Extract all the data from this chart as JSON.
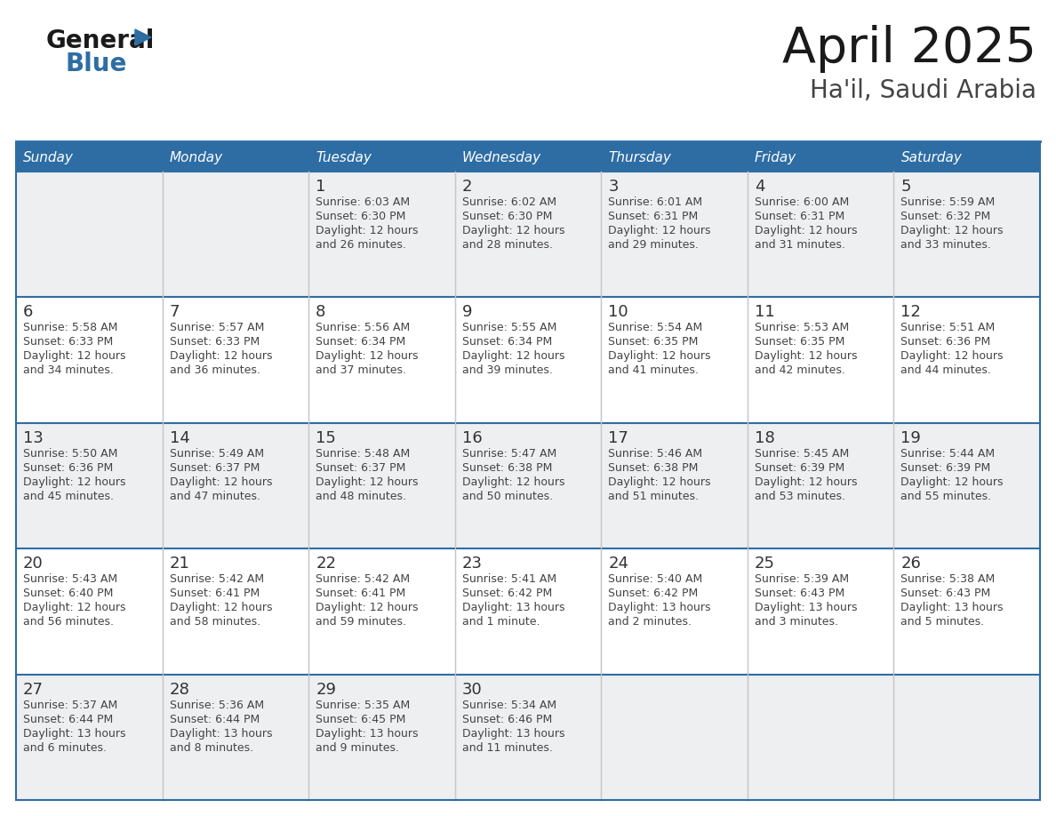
{
  "title": "April 2025",
  "subtitle": "Ha'il, Saudi Arabia",
  "days_of_week": [
    "Sunday",
    "Monday",
    "Tuesday",
    "Wednesday",
    "Thursday",
    "Friday",
    "Saturday"
  ],
  "header_bg": "#2E6DA4",
  "header_text": "#FFFFFF",
  "row_bg_odd": "#EEEFF1",
  "row_bg_even": "#FFFFFF",
  "cell_border_color": "#2E6DA4",
  "inner_border_color": "#AAAAAA",
  "day_number_color": "#333333",
  "text_color": "#444444",
  "title_color": "#1a1a1a",
  "subtitle_color": "#444444",
  "logo_general_color": "#1a1a1a",
  "logo_blue_color": "#2E6DA4",
  "logo_triangle_color": "#2E6DA4",
  "calendar_data": [
    [
      {
        "day": null,
        "lines": []
      },
      {
        "day": null,
        "lines": []
      },
      {
        "day": "1",
        "lines": [
          "Sunrise: 6:03 AM",
          "Sunset: 6:30 PM",
          "Daylight: 12 hours",
          "and 26 minutes."
        ]
      },
      {
        "day": "2",
        "lines": [
          "Sunrise: 6:02 AM",
          "Sunset: 6:30 PM",
          "Daylight: 12 hours",
          "and 28 minutes."
        ]
      },
      {
        "day": "3",
        "lines": [
          "Sunrise: 6:01 AM",
          "Sunset: 6:31 PM",
          "Daylight: 12 hours",
          "and 29 minutes."
        ]
      },
      {
        "day": "4",
        "lines": [
          "Sunrise: 6:00 AM",
          "Sunset: 6:31 PM",
          "Daylight: 12 hours",
          "and 31 minutes."
        ]
      },
      {
        "day": "5",
        "lines": [
          "Sunrise: 5:59 AM",
          "Sunset: 6:32 PM",
          "Daylight: 12 hours",
          "and 33 minutes."
        ]
      }
    ],
    [
      {
        "day": "6",
        "lines": [
          "Sunrise: 5:58 AM",
          "Sunset: 6:33 PM",
          "Daylight: 12 hours",
          "and 34 minutes."
        ]
      },
      {
        "day": "7",
        "lines": [
          "Sunrise: 5:57 AM",
          "Sunset: 6:33 PM",
          "Daylight: 12 hours",
          "and 36 minutes."
        ]
      },
      {
        "day": "8",
        "lines": [
          "Sunrise: 5:56 AM",
          "Sunset: 6:34 PM",
          "Daylight: 12 hours",
          "and 37 minutes."
        ]
      },
      {
        "day": "9",
        "lines": [
          "Sunrise: 5:55 AM",
          "Sunset: 6:34 PM",
          "Daylight: 12 hours",
          "and 39 minutes."
        ]
      },
      {
        "day": "10",
        "lines": [
          "Sunrise: 5:54 AM",
          "Sunset: 6:35 PM",
          "Daylight: 12 hours",
          "and 41 minutes."
        ]
      },
      {
        "day": "11",
        "lines": [
          "Sunrise: 5:53 AM",
          "Sunset: 6:35 PM",
          "Daylight: 12 hours",
          "and 42 minutes."
        ]
      },
      {
        "day": "12",
        "lines": [
          "Sunrise: 5:51 AM",
          "Sunset: 6:36 PM",
          "Daylight: 12 hours",
          "and 44 minutes."
        ]
      }
    ],
    [
      {
        "day": "13",
        "lines": [
          "Sunrise: 5:50 AM",
          "Sunset: 6:36 PM",
          "Daylight: 12 hours",
          "and 45 minutes."
        ]
      },
      {
        "day": "14",
        "lines": [
          "Sunrise: 5:49 AM",
          "Sunset: 6:37 PM",
          "Daylight: 12 hours",
          "and 47 minutes."
        ]
      },
      {
        "day": "15",
        "lines": [
          "Sunrise: 5:48 AM",
          "Sunset: 6:37 PM",
          "Daylight: 12 hours",
          "and 48 minutes."
        ]
      },
      {
        "day": "16",
        "lines": [
          "Sunrise: 5:47 AM",
          "Sunset: 6:38 PM",
          "Daylight: 12 hours",
          "and 50 minutes."
        ]
      },
      {
        "day": "17",
        "lines": [
          "Sunrise: 5:46 AM",
          "Sunset: 6:38 PM",
          "Daylight: 12 hours",
          "and 51 minutes."
        ]
      },
      {
        "day": "18",
        "lines": [
          "Sunrise: 5:45 AM",
          "Sunset: 6:39 PM",
          "Daylight: 12 hours",
          "and 53 minutes."
        ]
      },
      {
        "day": "19",
        "lines": [
          "Sunrise: 5:44 AM",
          "Sunset: 6:39 PM",
          "Daylight: 12 hours",
          "and 55 minutes."
        ]
      }
    ],
    [
      {
        "day": "20",
        "lines": [
          "Sunrise: 5:43 AM",
          "Sunset: 6:40 PM",
          "Daylight: 12 hours",
          "and 56 minutes."
        ]
      },
      {
        "day": "21",
        "lines": [
          "Sunrise: 5:42 AM",
          "Sunset: 6:41 PM",
          "Daylight: 12 hours",
          "and 58 minutes."
        ]
      },
      {
        "day": "22",
        "lines": [
          "Sunrise: 5:42 AM",
          "Sunset: 6:41 PM",
          "Daylight: 12 hours",
          "and 59 minutes."
        ]
      },
      {
        "day": "23",
        "lines": [
          "Sunrise: 5:41 AM",
          "Sunset: 6:42 PM",
          "Daylight: 13 hours",
          "and 1 minute."
        ]
      },
      {
        "day": "24",
        "lines": [
          "Sunrise: 5:40 AM",
          "Sunset: 6:42 PM",
          "Daylight: 13 hours",
          "and 2 minutes."
        ]
      },
      {
        "day": "25",
        "lines": [
          "Sunrise: 5:39 AM",
          "Sunset: 6:43 PM",
          "Daylight: 13 hours",
          "and 3 minutes."
        ]
      },
      {
        "day": "26",
        "lines": [
          "Sunrise: 5:38 AM",
          "Sunset: 6:43 PM",
          "Daylight: 13 hours",
          "and 5 minutes."
        ]
      }
    ],
    [
      {
        "day": "27",
        "lines": [
          "Sunrise: 5:37 AM",
          "Sunset: 6:44 PM",
          "Daylight: 13 hours",
          "and 6 minutes."
        ]
      },
      {
        "day": "28",
        "lines": [
          "Sunrise: 5:36 AM",
          "Sunset: 6:44 PM",
          "Daylight: 13 hours",
          "and 8 minutes."
        ]
      },
      {
        "day": "29",
        "lines": [
          "Sunrise: 5:35 AM",
          "Sunset: 6:45 PM",
          "Daylight: 13 hours",
          "and 9 minutes."
        ]
      },
      {
        "day": "30",
        "lines": [
          "Sunrise: 5:34 AM",
          "Sunset: 6:46 PM",
          "Daylight: 13 hours",
          "and 11 minutes."
        ]
      },
      {
        "day": null,
        "lines": []
      },
      {
        "day": null,
        "lines": []
      },
      {
        "day": null,
        "lines": []
      }
    ]
  ]
}
